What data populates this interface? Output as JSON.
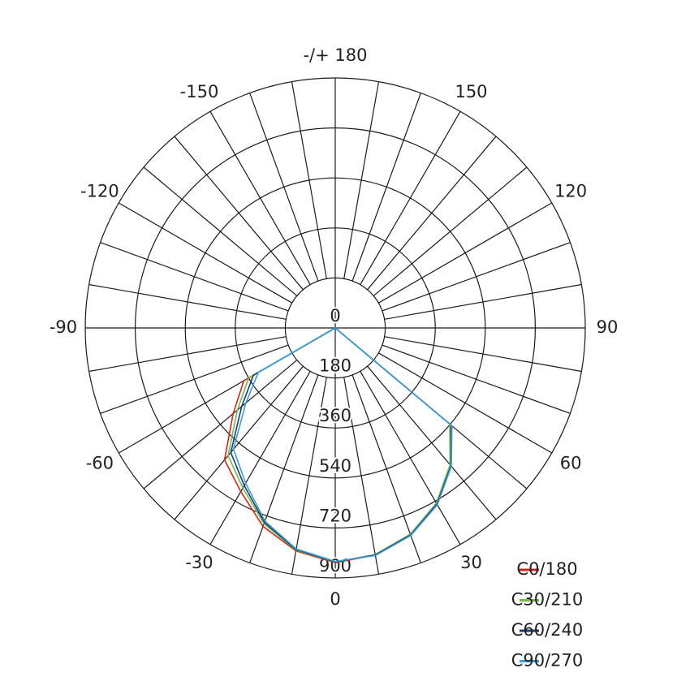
{
  "chart_data": {
    "type": "polar",
    "angles": [
      -90,
      -80,
      -70,
      -60,
      -50,
      -40,
      -30,
      -20,
      -10,
      0,
      10,
      20,
      30,
      40,
      50,
      60,
      70,
      80,
      90
    ],
    "series": [
      {
        "name": "C0/180",
        "color": "#c8281e",
        "values": [
          0,
          0,
          0,
          380,
          480,
          620,
          680,
          760,
          815,
          845,
          830,
          792,
          730,
          645,
          540,
          0,
          0,
          0,
          0
        ]
      },
      {
        "name": "C30/210",
        "color": "#7ab648",
        "values": [
          0,
          0,
          0,
          360,
          460,
          600,
          665,
          750,
          812,
          843,
          828,
          790,
          728,
          643,
          538,
          0,
          0,
          0,
          0
        ]
      },
      {
        "name": "C60/240",
        "color": "#1f3a6e",
        "values": [
          0,
          0,
          0,
          340,
          440,
          585,
          655,
          745,
          810,
          842,
          830,
          793,
          732,
          648,
          545,
          0,
          0,
          0,
          0
        ]
      },
      {
        "name": "C90/270",
        "color": "#3a9fd8",
        "values": [
          0,
          0,
          0,
          320,
          420,
          570,
          645,
          740,
          808,
          840,
          832,
          795,
          735,
          650,
          548,
          0,
          0,
          0,
          0
        ]
      }
    ],
    "rlim": [
      0,
      900
    ],
    "rticks": [
      0,
      180,
      360,
      540,
      720,
      900
    ],
    "angle_ticks": [
      0,
      30,
      60,
      90,
      120,
      150,
      {
        "value": 180,
        "label": "-/+ 180"
      },
      -150,
      -120,
      -90,
      -60,
      -30
    ],
    "angle_grid_step": 10,
    "legend": "lower right"
  }
}
